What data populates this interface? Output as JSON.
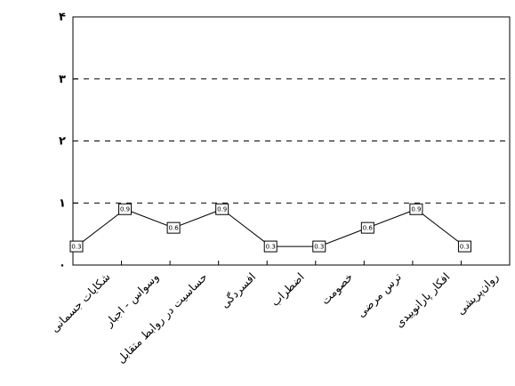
{
  "chart_data": {
    "type": "line",
    "categories": [
      "شکایات جسمانی",
      "وسواس - اجبار",
      "حساسیت در روابط متقابل",
      "افسردگی",
      "اضطراب",
      "خصومت",
      "ترس مرضی",
      "افکار پارانوییدی",
      "روان‌پریشی"
    ],
    "values": [
      0.3,
      0.9,
      0.6,
      0.9,
      0.3,
      0.3,
      0.6,
      0.9,
      0.3
    ],
    "ylim": [
      0,
      4
    ],
    "yticks": [
      0,
      1,
      2,
      3,
      4
    ],
    "ytick_labels": [
      "۰",
      "۱",
      "۲",
      "۳",
      "۴"
    ],
    "grid": "horizontal dashed",
    "marker": "square",
    "line_color": "#000000",
    "title": "",
    "xlabel": "",
    "ylabel": ""
  }
}
